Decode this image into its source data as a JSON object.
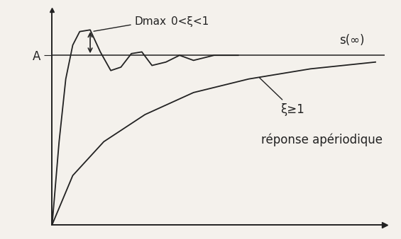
{
  "chart_data": {
    "type": "line",
    "xlim": [
      0,
      10.5
    ],
    "ylim": [
      0,
      1.27
    ],
    "xticks": [],
    "yticks": [
      {
        "value": 1,
        "label": "A"
      }
    ],
    "tick_labels": "y",
    "grid": false,
    "reference": {
      "value": 1,
      "label": "s(∞)"
    },
    "overshoot": {
      "label": "Dmax",
      "x": 1.2,
      "from": 1,
      "to": 1.15
    },
    "annotations": [
      "réponse apériodique"
    ],
    "series": [
      {
        "name": "0<ξ<1",
        "color": "#222222",
        "line_style": "solid",
        "x": [
          0,
          0.22,
          0.43,
          0.65,
          0.87,
          1.2,
          1.52,
          1.85,
          2.17,
          2.5,
          2.83,
          3.15,
          3.59,
          4.02,
          4.46,
          5.11,
          5.87
        ],
        "values": [
          0,
          0.49,
          0.86,
          1.06,
          1.14,
          1.15,
          1.02,
          0.91,
          0.93,
          1.01,
          1.02,
          0.94,
          0.96,
          1.0,
          0.97,
          1.0,
          1.0
        ]
      },
      {
        "name": "ξ≥1",
        "color": "#222222",
        "line_style": "solid",
        "x": [
          0,
          0.65,
          1.63,
          2.93,
          4.46,
          6.2,
          8.15,
          10.2
        ],
        "values": [
          0,
          0.29,
          0.49,
          0.65,
          0.78,
          0.86,
          0.92,
          0.96
        ]
      }
    ]
  }
}
